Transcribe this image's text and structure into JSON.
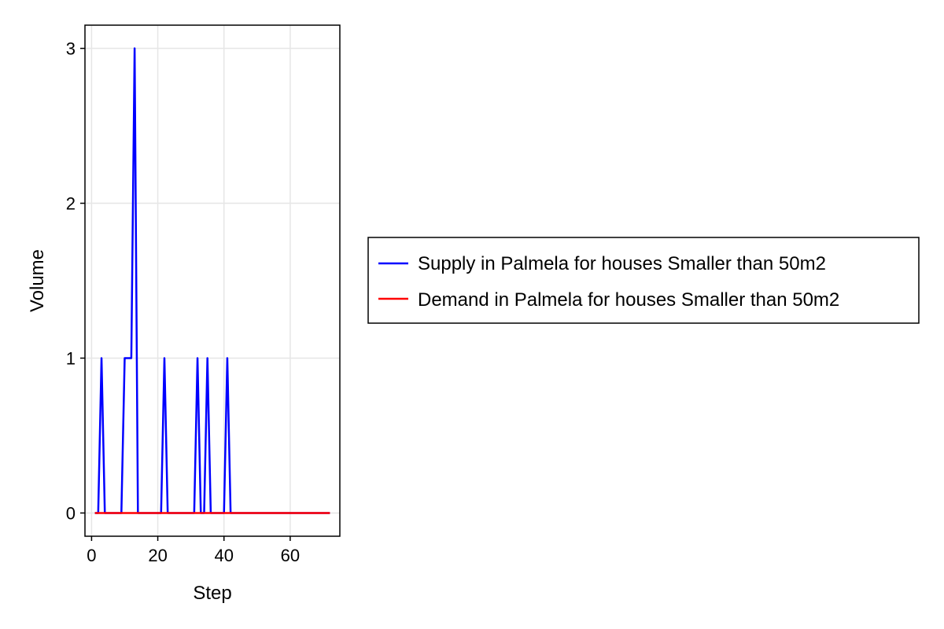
{
  "chart_data": {
    "type": "line",
    "xlabel": "Step",
    "ylabel": "Volume",
    "xlim": [
      -2,
      75
    ],
    "ylim": [
      -0.15,
      3.15
    ],
    "x_ticks": [
      0,
      20,
      40,
      60
    ],
    "y_ticks": [
      0,
      1,
      2,
      3
    ],
    "x_tick_labels": [
      "0",
      "20",
      "40",
      "60"
    ],
    "y_tick_labels": [
      "0",
      "1",
      "2",
      "3"
    ],
    "grid": true,
    "legend_position": "right",
    "series": [
      {
        "name": "Supply in Palmela for houses Smaller than 50m2",
        "color": "#0000ff",
        "x": [
          1,
          2,
          3,
          4,
          5,
          6,
          7,
          8,
          9,
          10,
          11,
          12,
          13,
          14,
          15,
          16,
          17,
          18,
          19,
          20,
          21,
          22,
          23,
          24,
          25,
          26,
          27,
          28,
          29,
          30,
          31,
          32,
          33,
          34,
          35,
          36,
          37,
          38,
          39,
          40,
          41,
          42,
          43,
          44,
          45,
          46,
          47,
          48,
          49,
          50,
          51,
          52,
          53,
          54,
          55,
          56,
          57,
          58,
          59,
          60,
          61,
          62,
          63,
          64,
          65,
          66,
          67,
          68,
          69,
          70,
          71,
          72
        ],
        "values": [
          0,
          0,
          1,
          0,
          0,
          0,
          0,
          0,
          0,
          1,
          1,
          1,
          3,
          0,
          0,
          0,
          0,
          0,
          0,
          0,
          0,
          1,
          0,
          0,
          0,
          0,
          0,
          0,
          0,
          0,
          0,
          1,
          0,
          0,
          1,
          0,
          0,
          0,
          0,
          0,
          1,
          0,
          0,
          0,
          0,
          0,
          0,
          0,
          0,
          0,
          0,
          0,
          0,
          0,
          0,
          0,
          0,
          0,
          0,
          0,
          0,
          0,
          0,
          0,
          0,
          0,
          0,
          0,
          0,
          0,
          0,
          0
        ]
      },
      {
        "name": "Demand in Palmela for houses Smaller than 50m2",
        "color": "#ff0000",
        "x": [
          1,
          2,
          3,
          4,
          5,
          6,
          7,
          8,
          9,
          10,
          11,
          12,
          13,
          14,
          15,
          16,
          17,
          18,
          19,
          20,
          21,
          22,
          23,
          24,
          25,
          26,
          27,
          28,
          29,
          30,
          31,
          32,
          33,
          34,
          35,
          36,
          37,
          38,
          39,
          40,
          41,
          42,
          43,
          44,
          45,
          46,
          47,
          48,
          49,
          50,
          51,
          52,
          53,
          54,
          55,
          56,
          57,
          58,
          59,
          60,
          61,
          62,
          63,
          64,
          65,
          66,
          67,
          68,
          69,
          70,
          71,
          72
        ],
        "values": [
          0,
          0,
          0,
          0,
          0,
          0,
          0,
          0,
          0,
          0,
          0,
          0,
          0,
          0,
          0,
          0,
          0,
          0,
          0,
          0,
          0,
          0,
          0,
          0,
          0,
          0,
          0,
          0,
          0,
          0,
          0,
          0,
          0,
          0,
          0,
          0,
          0,
          0,
          0,
          0,
          0,
          0,
          0,
          0,
          0,
          0,
          0,
          0,
          0,
          0,
          0,
          0,
          0,
          0,
          0,
          0,
          0,
          0,
          0,
          0,
          0,
          0,
          0,
          0,
          0,
          0,
          0,
          0,
          0,
          0,
          0,
          0
        ]
      }
    ]
  }
}
